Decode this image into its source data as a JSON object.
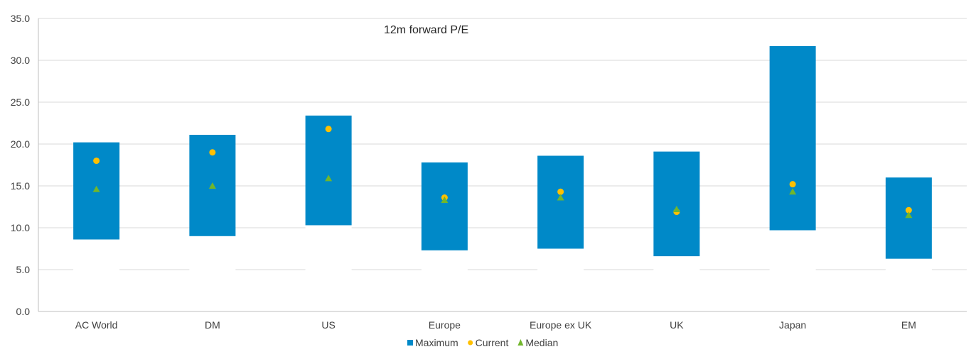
{
  "chart_data": {
    "type": "bar",
    "subtype": "floating-range-with-markers",
    "title": "12m forward P/E",
    "xlabel": "",
    "ylabel": "",
    "ylim": [
      0,
      35
    ],
    "yticks": [
      "0.0",
      "5.0",
      "10.0",
      "15.0",
      "20.0",
      "25.0",
      "30.0",
      "35.0"
    ],
    "grid": true,
    "legend_position": "bottom",
    "categories": [
      "AC World",
      "DM",
      "US",
      "Europe",
      "Europe ex UK",
      "UK",
      "Japan",
      "EM"
    ],
    "range_min": [
      8.6,
      9.0,
      10.3,
      7.3,
      7.5,
      6.6,
      9.7,
      6.3
    ],
    "series": [
      {
        "name": "Maximum",
        "marker": "bar",
        "color": "#0089c8",
        "values": [
          20.2,
          21.1,
          23.4,
          17.8,
          18.6,
          19.1,
          31.7,
          16.0
        ]
      },
      {
        "name": "Current",
        "marker": "circle",
        "color": "#ffc000",
        "values": [
          18.0,
          19.0,
          21.8,
          13.6,
          14.3,
          11.9,
          15.2,
          12.1
        ]
      },
      {
        "name": "Median",
        "marker": "triangle",
        "color": "#71b62c",
        "values": [
          14.6,
          15.0,
          15.9,
          13.3,
          13.6,
          12.2,
          14.3,
          11.5
        ]
      }
    ]
  }
}
